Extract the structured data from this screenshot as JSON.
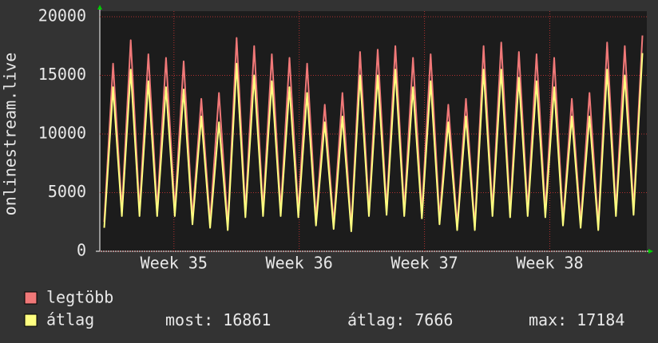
{
  "chart_data": {
    "type": "line",
    "ylabel": "onlinestream.live",
    "xlim": [
      0,
      31
    ],
    "xticks": [
      {
        "value": 4.2,
        "label": "Week 35"
      },
      {
        "value": 11.3,
        "label": "Week 36"
      },
      {
        "value": 18.4,
        "label": "Week 37"
      },
      {
        "value": 25.5,
        "label": "Week 38"
      }
    ],
    "ylim": [
      0,
      20000
    ],
    "yticks": [
      0,
      5000,
      10000,
      15000,
      20000
    ],
    "grid": true,
    "x": [
      0.25,
      0.75,
      1.25,
      1.75,
      2.25,
      2.75,
      3.25,
      3.75,
      4.25,
      4.75,
      5.25,
      5.75,
      6.25,
      6.75,
      7.25,
      7.75,
      8.25,
      8.75,
      9.25,
      9.75,
      10.25,
      10.75,
      11.25,
      11.75,
      12.25,
      12.75,
      13.25,
      13.75,
      14.25,
      14.75,
      15.25,
      15.75,
      16.25,
      16.75,
      17.25,
      17.75,
      18.25,
      18.75,
      19.25,
      19.75,
      20.25,
      20.75,
      21.25,
      21.75,
      22.25,
      22.75,
      23.25,
      23.75,
      24.25,
      24.75,
      25.25,
      25.75,
      26.25,
      26.75,
      27.25,
      27.75,
      28.25,
      28.75,
      29.25,
      29.75,
      30.25,
      30.75
    ],
    "series": [
      {
        "name": "legtöbb",
        "color": "#f07878",
        "values": [
          2500,
          16000,
          3500,
          18000,
          3500,
          16800,
          3500,
          16500,
          3500,
          16200,
          2800,
          13000,
          2500,
          13500,
          2200,
          18200,
          3400,
          17500,
          3500,
          16800,
          3500,
          16500,
          3400,
          16000,
          2700,
          12500,
          2300,
          13500,
          2000,
          17000,
          3500,
          17200,
          3600,
          17500,
          3500,
          16500,
          3300,
          16800,
          2800,
          12500,
          2200,
          13000,
          2100,
          17500,
          3500,
          17800,
          3400,
          17000,
          3500,
          16800,
          3400,
          16500,
          2600,
          13000,
          2400,
          13500,
          2200,
          17800,
          3500,
          17500,
          3600,
          18400
        ]
      },
      {
        "name": "átlag",
        "color": "#ffff80",
        "values": [
          2000,
          14000,
          3000,
          15500,
          3000,
          14500,
          3000,
          14000,
          3000,
          13800,
          2300,
          11500,
          2000,
          11000,
          1800,
          16000,
          2900,
          15000,
          3000,
          14500,
          3000,
          14000,
          2900,
          13500,
          2200,
          11000,
          1900,
          11500,
          1700,
          15000,
          3000,
          15000,
          3100,
          15500,
          3000,
          14000,
          2800,
          14500,
          2300,
          11000,
          1800,
          11500,
          1800,
          15500,
          3000,
          15500,
          2900,
          14800,
          3000,
          14500,
          2900,
          14000,
          2200,
          11500,
          2000,
          11500,
          1800,
          15500,
          3000,
          15000,
          3100,
          16900
        ]
      }
    ],
    "stats": [
      {
        "label": "most:",
        "value": 16861
      },
      {
        "label": "átlag:",
        "value": 7666
      },
      {
        "label": "max:",
        "value": 17184
      }
    ]
  }
}
